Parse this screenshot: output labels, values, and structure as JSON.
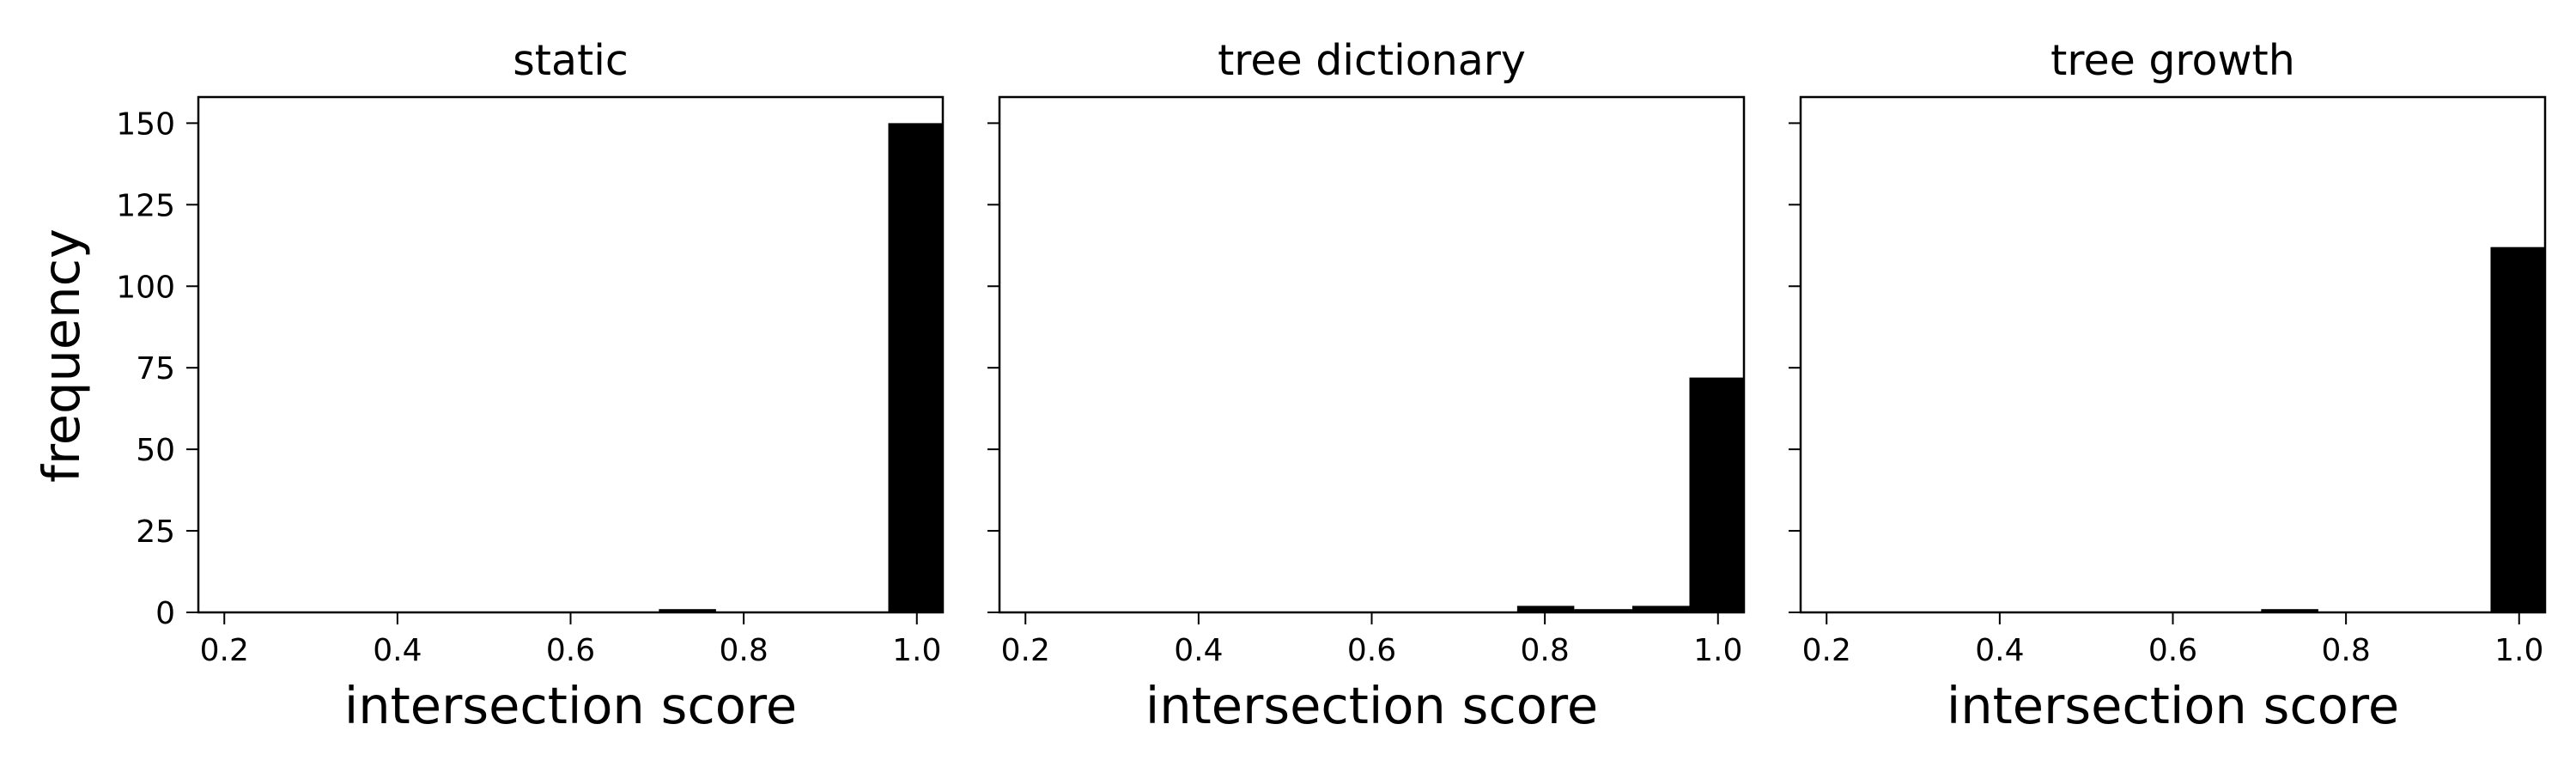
{
  "figure": {
    "ylabel": "frequency",
    "bar_color": "#000000",
    "background": "#ffffff"
  },
  "chart_data": [
    {
      "type": "bar",
      "title": "static",
      "xlabel": "intersection score",
      "ylabel": "frequency",
      "xlim": [
        0.17,
        1.03
      ],
      "ylim": [
        0,
        158
      ],
      "xticks": [
        "0.2",
        "0.4",
        "0.6",
        "0.8",
        "1.0"
      ],
      "yticks": [
        "0",
        "25",
        "50",
        "75",
        "100",
        "125",
        "150"
      ],
      "bins": [
        {
          "x0": 0.702,
          "x1": 0.768,
          "count": 1
        },
        {
          "x0": 0.967,
          "x1": 1.033,
          "count": 150
        }
      ]
    },
    {
      "type": "bar",
      "title": "tree dictionary",
      "xlabel": "intersection score",
      "ylabel": "frequency",
      "xlim": [
        0.17,
        1.03
      ],
      "ylim": [
        0,
        158
      ],
      "xticks": [
        "0.2",
        "0.4",
        "0.6",
        "0.8",
        "1.0"
      ],
      "yticks": [
        "0",
        "25",
        "50",
        "75",
        "100",
        "125",
        "150"
      ],
      "bins": [
        {
          "x0": 0.768,
          "x1": 0.834,
          "count": 2
        },
        {
          "x0": 0.834,
          "x1": 0.901,
          "count": 1
        },
        {
          "x0": 0.901,
          "x1": 0.967,
          "count": 2
        },
        {
          "x0": 0.967,
          "x1": 1.033,
          "count": 72
        }
      ]
    },
    {
      "type": "bar",
      "title": "tree growth",
      "xlabel": "intersection score",
      "ylabel": "frequency",
      "xlim": [
        0.17,
        1.03
      ],
      "ylim": [
        0,
        158
      ],
      "xticks": [
        "0.2",
        "0.4",
        "0.6",
        "0.8",
        "1.0"
      ],
      "yticks": [
        "0",
        "25",
        "50",
        "75",
        "100",
        "125",
        "150"
      ],
      "bins": [
        {
          "x0": 0.702,
          "x1": 0.768,
          "count": 1
        },
        {
          "x0": 0.967,
          "x1": 1.033,
          "count": 112
        }
      ]
    }
  ]
}
